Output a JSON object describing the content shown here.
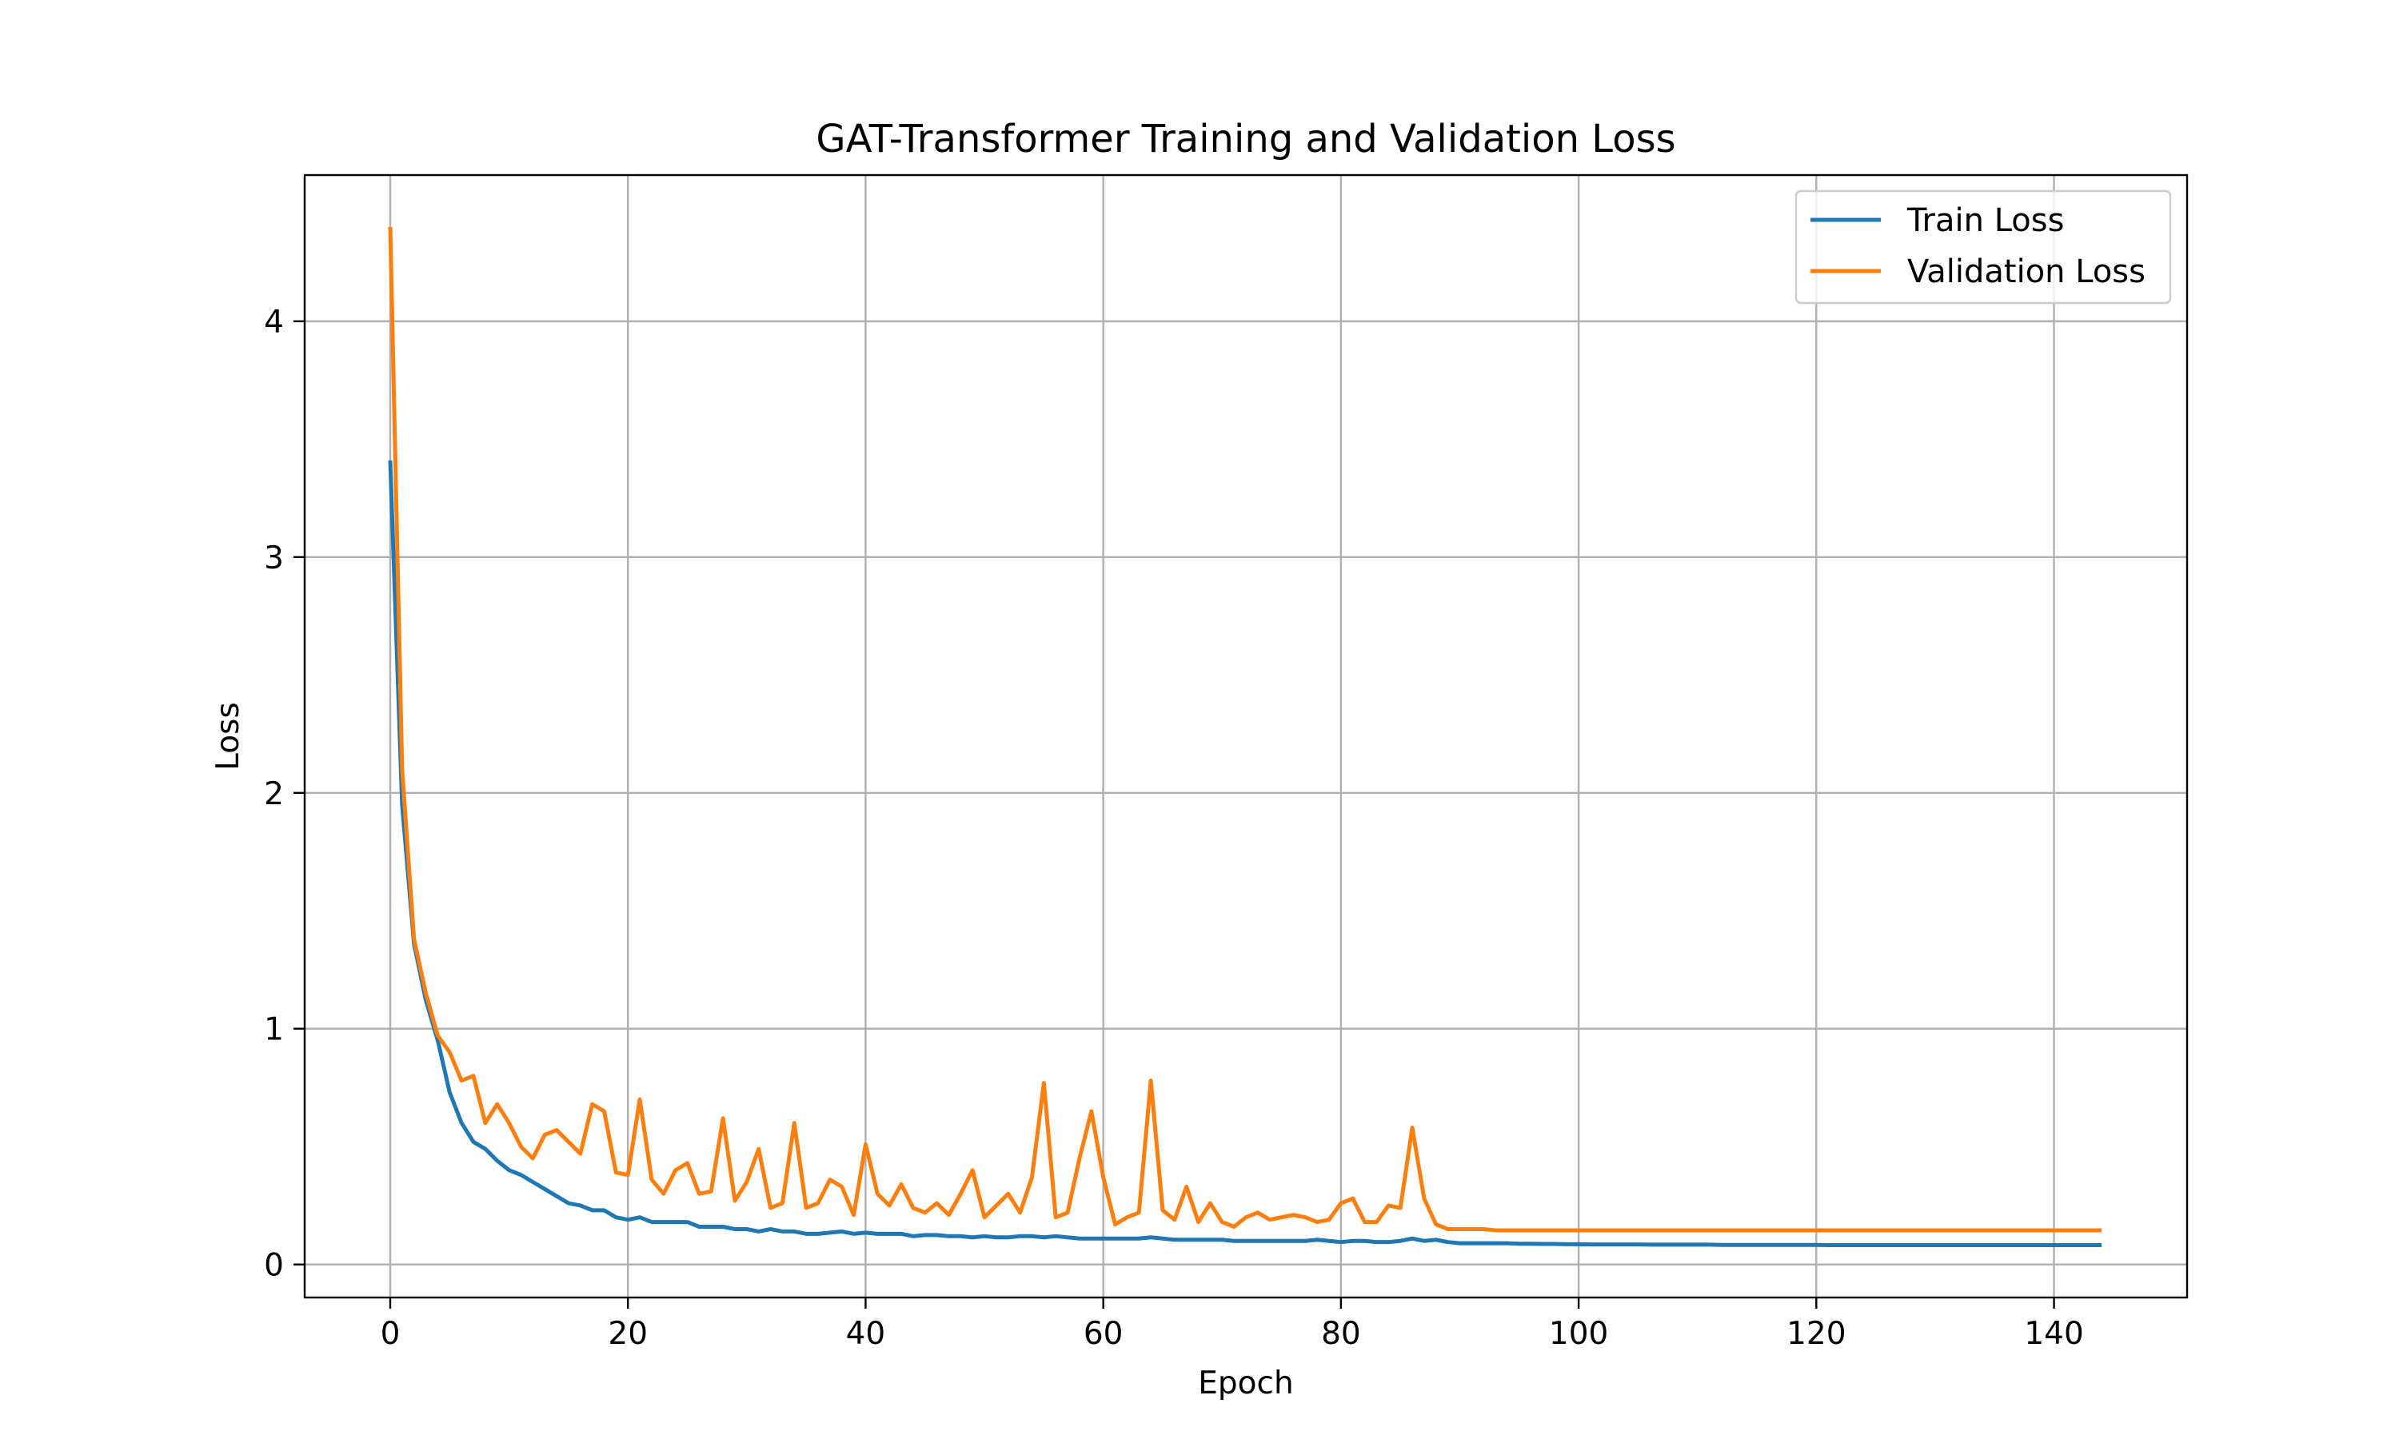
{
  "chart_data": {
    "type": "line",
    "title": "GAT-Transformer Training and Validation Loss",
    "xlabel": "Epoch",
    "ylabel": "Loss",
    "xlim": [
      -7.2,
      151.2
    ],
    "ylim": [
      -0.14,
      4.62
    ],
    "x_ticks": [
      0,
      20,
      40,
      60,
      80,
      100,
      120,
      140
    ],
    "y_ticks": [
      0,
      1,
      2,
      3,
      4
    ],
    "grid": true,
    "legend_position": "top-right",
    "series": [
      {
        "name": "Train Loss",
        "color": "#1f77b4",
        "x_start": 0,
        "values": [
          3.41,
          1.95,
          1.36,
          1.12,
          0.95,
          0.73,
          0.6,
          0.52,
          0.49,
          0.44,
          0.4,
          0.38,
          0.35,
          0.32,
          0.29,
          0.26,
          0.25,
          0.23,
          0.23,
          0.2,
          0.19,
          0.2,
          0.18,
          0.18,
          0.18,
          0.18,
          0.16,
          0.16,
          0.16,
          0.15,
          0.15,
          0.14,
          0.15,
          0.14,
          0.14,
          0.13,
          0.13,
          0.135,
          0.14,
          0.13,
          0.135,
          0.13,
          0.13,
          0.13,
          0.12,
          0.125,
          0.125,
          0.12,
          0.12,
          0.115,
          0.12,
          0.115,
          0.115,
          0.12,
          0.12,
          0.115,
          0.12,
          0.115,
          0.11,
          0.11,
          0.11,
          0.11,
          0.11,
          0.11,
          0.115,
          0.11,
          0.105,
          0.105,
          0.105,
          0.105,
          0.105,
          0.1,
          0.1,
          0.1,
          0.1,
          0.1,
          0.1,
          0.1,
          0.105,
          0.1,
          0.095,
          0.1,
          0.1,
          0.095,
          0.095,
          0.1,
          0.11,
          0.1,
          0.105,
          0.095,
          0.09,
          0.09,
          0.09,
          0.09,
          0.09,
          0.088,
          0.088,
          0.087,
          0.087,
          0.086,
          0.086,
          0.085,
          0.085,
          0.085,
          0.085,
          0.085,
          0.084,
          0.084,
          0.084,
          0.084,
          0.084,
          0.084,
          0.083,
          0.083,
          0.083,
          0.083,
          0.083,
          0.083,
          0.083,
          0.083,
          0.083,
          0.082,
          0.082,
          0.082,
          0.082,
          0.082,
          0.082,
          0.082,
          0.082,
          0.082,
          0.082,
          0.082,
          0.082,
          0.082,
          0.082,
          0.082,
          0.082,
          0.082,
          0.082,
          0.082,
          0.082,
          0.082,
          0.082,
          0.082,
          0.082
        ]
      },
      {
        "name": "Validation Loss",
        "color": "#ff7f0e",
        "x_start": 0,
        "values": [
          4.4,
          2.1,
          1.38,
          1.15,
          0.97,
          0.9,
          0.78,
          0.8,
          0.6,
          0.68,
          0.6,
          0.5,
          0.45,
          0.55,
          0.57,
          0.52,
          0.47,
          0.68,
          0.65,
          0.39,
          0.38,
          0.7,
          0.36,
          0.3,
          0.4,
          0.43,
          0.3,
          0.31,
          0.62,
          0.27,
          0.35,
          0.49,
          0.24,
          0.26,
          0.6,
          0.24,
          0.26,
          0.36,
          0.33,
          0.21,
          0.51,
          0.3,
          0.25,
          0.34,
          0.24,
          0.22,
          0.26,
          0.21,
          0.3,
          0.4,
          0.2,
          0.25,
          0.3,
          0.22,
          0.37,
          0.77,
          0.2,
          0.22,
          0.45,
          0.65,
          0.37,
          0.17,
          0.2,
          0.22,
          0.78,
          0.23,
          0.19,
          0.33,
          0.18,
          0.26,
          0.18,
          0.16,
          0.2,
          0.22,
          0.19,
          0.2,
          0.21,
          0.2,
          0.18,
          0.19,
          0.26,
          0.28,
          0.18,
          0.18,
          0.25,
          0.24,
          0.58,
          0.28,
          0.17,
          0.15,
          0.15,
          0.15,
          0.15,
          0.145,
          0.145,
          0.145,
          0.145,
          0.145,
          0.145,
          0.145,
          0.145,
          0.145,
          0.145,
          0.145,
          0.145,
          0.145,
          0.145,
          0.145,
          0.145,
          0.145,
          0.145,
          0.145,
          0.145,
          0.145,
          0.145,
          0.145,
          0.145,
          0.145,
          0.145,
          0.145,
          0.145,
          0.145,
          0.145,
          0.145,
          0.145,
          0.145,
          0.145,
          0.145,
          0.145,
          0.145,
          0.145,
          0.145,
          0.145,
          0.145,
          0.145,
          0.145,
          0.145,
          0.145,
          0.145,
          0.145,
          0.145,
          0.145,
          0.145,
          0.145,
          0.145
        ]
      }
    ]
  }
}
